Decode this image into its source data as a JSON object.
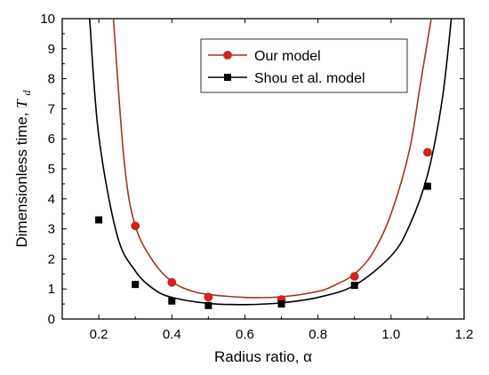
{
  "chart_data": {
    "type": "scatter",
    "xlabel": "Radius ratio, α",
    "ylabel_main": "Dimensionless time, ",
    "ylabel_symbol": "T",
    "ylabel_sub": "d",
    "xlim": [
      0.1,
      1.2
    ],
    "ylim": [
      0,
      10
    ],
    "xticks": [
      "0.2",
      "0.4",
      "0.6",
      "0.8",
      "1.0",
      "1.2"
    ],
    "xtick_values": [
      0.2,
      0.4,
      0.6,
      0.8,
      1.0,
      1.2
    ],
    "yticks": [
      "0",
      "1",
      "2",
      "3",
      "4",
      "5",
      "6",
      "7",
      "8",
      "9",
      "10"
    ],
    "ytick_values": [
      0,
      1,
      2,
      3,
      4,
      5,
      6,
      7,
      8,
      9,
      10
    ],
    "grid": false,
    "legend_position": "top-right",
    "series": [
      {
        "name": "Our model",
        "color": "#a8321c",
        "marker": "circle",
        "marker_color": "#dd1e1e",
        "points": [
          {
            "x": 0.3,
            "y": 3.1
          },
          {
            "x": 0.4,
            "y": 1.22
          },
          {
            "x": 0.5,
            "y": 0.73
          },
          {
            "x": 0.7,
            "y": 0.65
          },
          {
            "x": 0.9,
            "y": 1.42
          },
          {
            "x": 1.1,
            "y": 5.55
          }
        ],
        "curve": [
          {
            "x": 0.24,
            "y": 10.0
          },
          {
            "x": 0.27,
            "y": 5.2
          },
          {
            "x": 0.3,
            "y": 3.1
          },
          {
            "x": 0.35,
            "y": 1.9
          },
          {
            "x": 0.4,
            "y": 1.25
          },
          {
            "x": 0.45,
            "y": 0.95
          },
          {
            "x": 0.5,
            "y": 0.82
          },
          {
            "x": 0.6,
            "y": 0.72
          },
          {
            "x": 0.7,
            "y": 0.74
          },
          {
            "x": 0.8,
            "y": 0.92
          },
          {
            "x": 0.85,
            "y": 1.15
          },
          {
            "x": 0.9,
            "y": 1.5
          },
          {
            "x": 0.95,
            "y": 2.2
          },
          {
            "x": 1.0,
            "y": 3.5
          },
          {
            "x": 1.05,
            "y": 5.6
          },
          {
            "x": 1.08,
            "y": 7.8
          },
          {
            "x": 1.11,
            "y": 10.0
          }
        ]
      },
      {
        "name": "Shou et al. model",
        "color": "#000000",
        "marker": "square",
        "marker_color": "#000000",
        "points": [
          {
            "x": 0.2,
            "y": 3.3
          },
          {
            "x": 0.3,
            "y": 1.15
          },
          {
            "x": 0.4,
            "y": 0.6
          },
          {
            "x": 0.5,
            "y": 0.45
          },
          {
            "x": 0.7,
            "y": 0.5
          },
          {
            "x": 0.9,
            "y": 1.12
          },
          {
            "x": 1.1,
            "y": 4.42
          }
        ],
        "curve": [
          {
            "x": 0.175,
            "y": 10.0
          },
          {
            "x": 0.2,
            "y": 6.1
          },
          {
            "x": 0.25,
            "y": 2.8
          },
          {
            "x": 0.3,
            "y": 1.6
          },
          {
            "x": 0.35,
            "y": 1.0
          },
          {
            "x": 0.4,
            "y": 0.72
          },
          {
            "x": 0.5,
            "y": 0.52
          },
          {
            "x": 0.6,
            "y": 0.48
          },
          {
            "x": 0.7,
            "y": 0.54
          },
          {
            "x": 0.8,
            "y": 0.72
          },
          {
            "x": 0.9,
            "y": 1.12
          },
          {
            "x": 1.0,
            "y": 2.1
          },
          {
            "x": 1.05,
            "y": 3.1
          },
          {
            "x": 1.1,
            "y": 4.8
          },
          {
            "x": 1.14,
            "y": 7.3
          },
          {
            "x": 1.165,
            "y": 10.0
          }
        ]
      }
    ]
  }
}
